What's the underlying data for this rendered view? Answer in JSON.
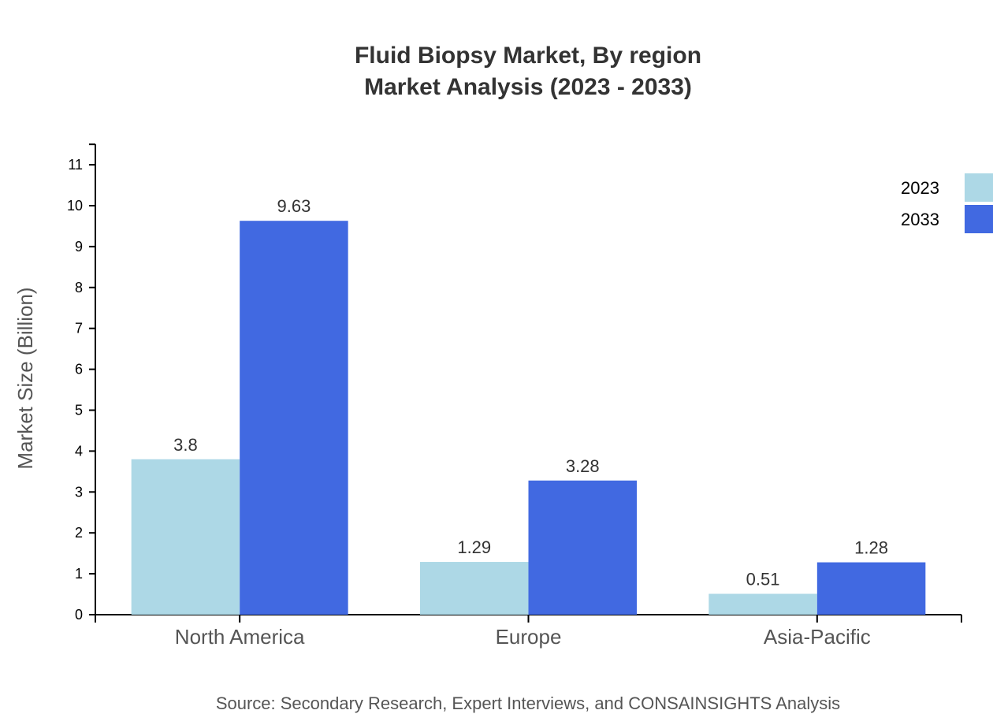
{
  "chart_data": {
    "type": "bar",
    "title": "Fluid Biopsy Market, By region",
    "subtitle": "Market Analysis (2023 - 2033)",
    "xlabel": "",
    "ylabel": "Market Size (Billion)",
    "categories": [
      "North America",
      "Europe",
      "Asia-Pacific"
    ],
    "series": [
      {
        "name": "2023",
        "values": [
          3.8,
          1.29,
          0.51
        ],
        "color": "#add8e6"
      },
      {
        "name": "2033",
        "values": [
          9.63,
          3.28,
          1.28
        ],
        "color": "#4169e1"
      }
    ],
    "ylim": [
      0,
      11.5
    ],
    "yticks": [
      0,
      1,
      2,
      3,
      4,
      5,
      6,
      7,
      8,
      9,
      10,
      11
    ],
    "grid": false,
    "legend": "top-right",
    "source": "Source: Secondary Research, Expert Interviews, and CONSAINSIGHTS Analysis"
  }
}
